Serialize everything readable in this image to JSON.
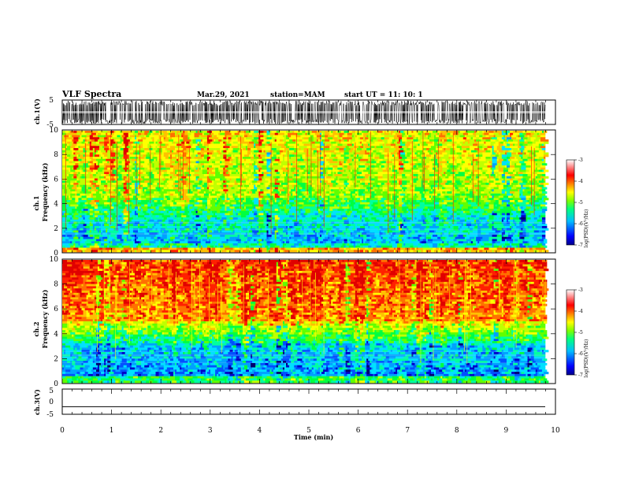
{
  "header": {
    "title": "VLF Spectra",
    "date": "Mar.29, 2021",
    "station": "station=MAM",
    "start": "start  UT =   11: 10: 1"
  },
  "chart_data": [
    {
      "type": "line",
      "name": "ch1-waveform",
      "ylabel": "ch.1(V)",
      "ylim": [
        -5,
        5
      ],
      "y_ticks": [
        "5",
        "-5"
      ],
      "xlim": [
        0,
        10
      ],
      "description_level": "dense oscillation filling full range"
    },
    {
      "type": "heatmap",
      "name": "ch1-spectrogram",
      "ylabel_line1": "ch.1",
      "ylabel_line2": "Frequency (kHz)",
      "ylim": [
        0,
        10
      ],
      "y_ticks": [
        "0",
        "2",
        "4",
        "6",
        "8",
        "10"
      ],
      "xlim": [
        0,
        9.83
      ],
      "colorbar": {
        "label": "log(PSD)(V²/Hz)",
        "range": [
          -7,
          -3
        ],
        "ticks": [
          "-3",
          "-4",
          "-5",
          "-6",
          "-7"
        ],
        "colors": [
          "#00008b",
          "#0000ff",
          "#00bfff",
          "#00ff7f",
          "#7fff00",
          "#ffff00",
          "#ff7f00",
          "#ff0000",
          "#ffffff"
        ]
      }
    },
    {
      "type": "heatmap",
      "name": "ch2-spectrogram",
      "ylabel_line1": "ch.2",
      "ylabel_line2": "Frequency (kHz)",
      "ylim": [
        0,
        10
      ],
      "y_ticks": [
        "0",
        "2",
        "4",
        "6",
        "8",
        "10"
      ],
      "xlim": [
        0,
        9.83
      ],
      "colorbar": {
        "label": "log(PSD)(V²/Hz)",
        "range": [
          -7,
          -3
        ],
        "ticks": [
          "-3",
          "-4",
          "-5",
          "-6",
          "-7"
        ]
      }
    },
    {
      "type": "line",
      "name": "ch3-waveform",
      "ylabel": "ch.3(V)",
      "ylim": [
        -5,
        5
      ],
      "y_ticks": [
        "5",
        "0",
        "-5"
      ],
      "values_constant": -2
    }
  ],
  "xaxis": {
    "label": "Time (min)",
    "ticks": [
      "0",
      "1",
      "2",
      "3",
      "4",
      "5",
      "6",
      "7",
      "8",
      "9",
      "10"
    ]
  }
}
